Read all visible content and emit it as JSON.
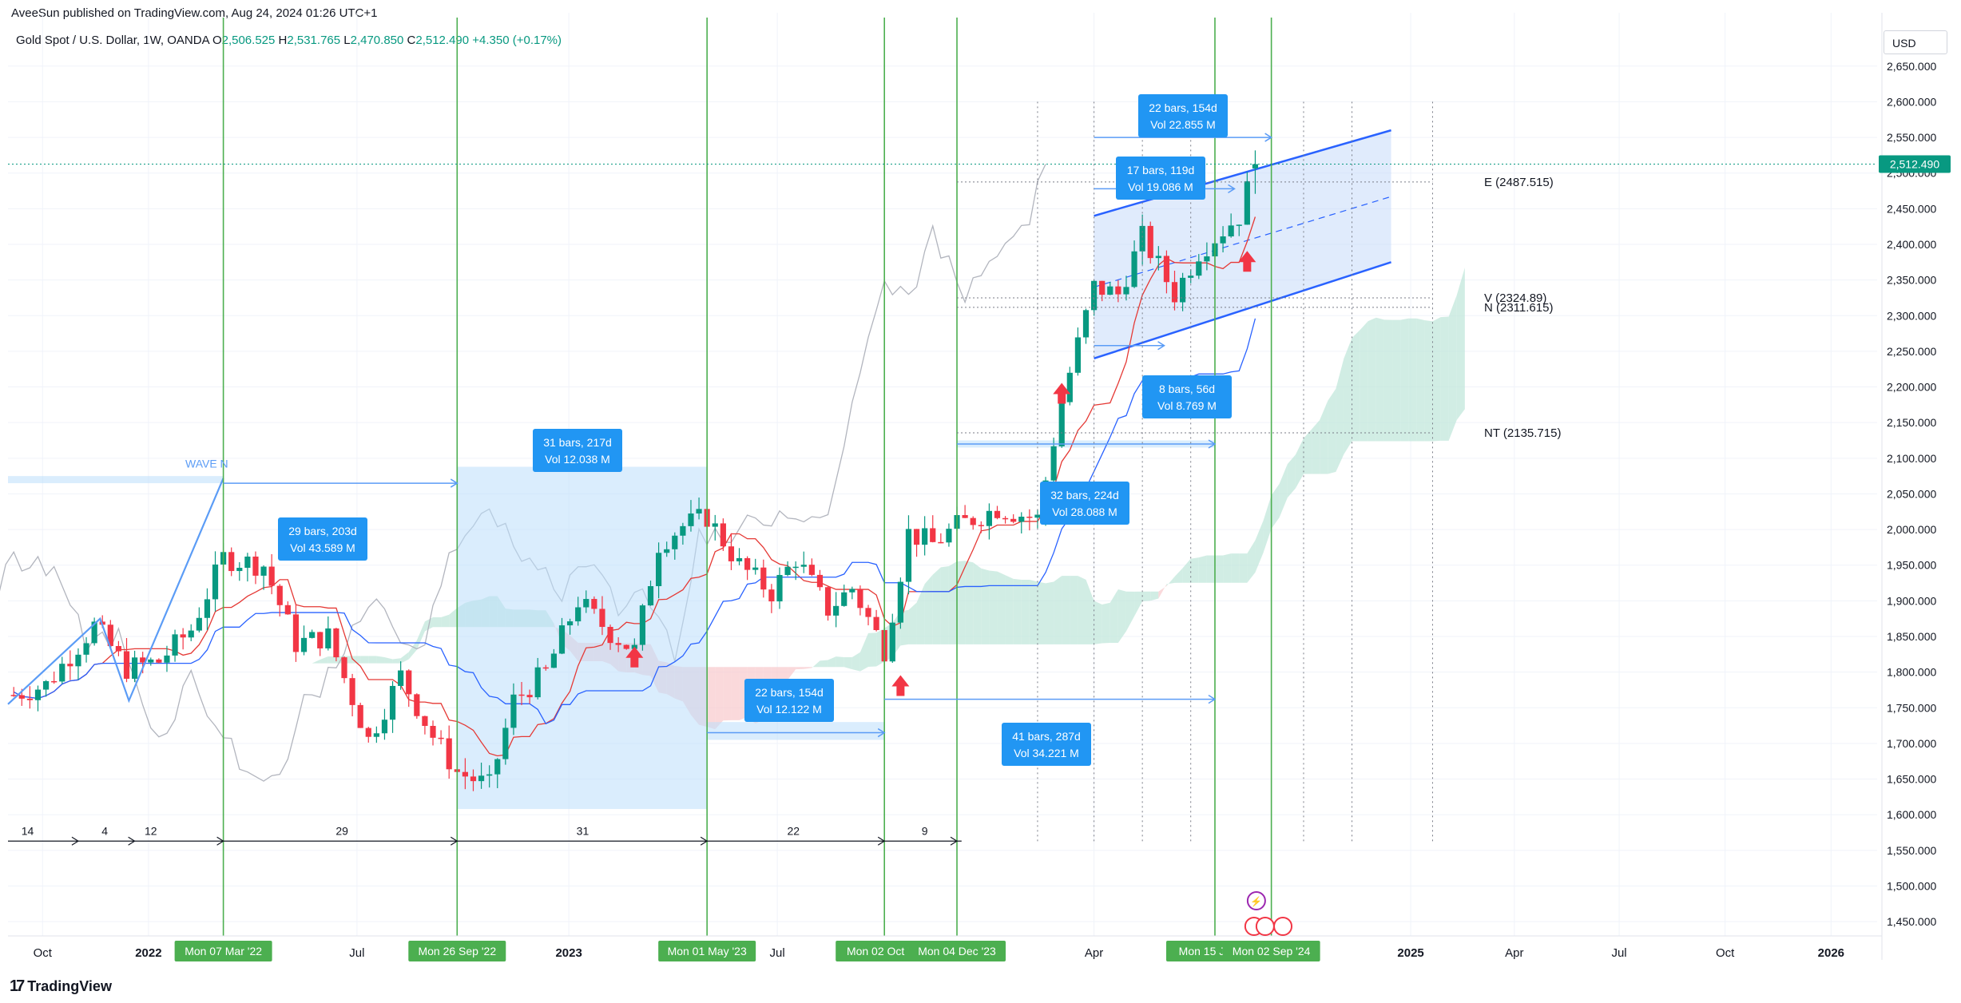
{
  "header": {
    "published": "AveeSun published on TradingView.com, Aug 24, 2024 01:26 UTC+1",
    "symbol": "Gold Spot / U.S. Dollar, 1W, OANDA",
    "ohlc": {
      "O": "2,506.525",
      "H": "2,531.765",
      "L": "2,470.850",
      "C": "2,512.490",
      "chg": "+4.350 (+0.17%)"
    }
  },
  "currency": "USD",
  "footer": {
    "logo": "TradingView"
  },
  "colors": {
    "up": "#089981",
    "down": "#f23645",
    "tenkan": "#e53935",
    "kijun": "#2962ff",
    "lagging": "#b2b5be",
    "cloud_bull": "#bde5d9",
    "cloud_bear": "#f8c9cc",
    "range": "#bbdefb",
    "vline": "#4caf50",
    "accent": "#2962ff"
  },
  "chart_data": {
    "type": "candlestick",
    "title": "Gold Spot / U.S. Dollar, 1W, OANDA",
    "ylim": [
      1430,
      2680
    ],
    "y_ticks": [
      1450,
      1500,
      1550,
      1600,
      1650,
      1700,
      1750,
      1800,
      1850,
      1900,
      1950,
      2000,
      2050,
      2100,
      2150,
      2200,
      2250,
      2300,
      2350,
      2400,
      2450,
      2500,
      2550,
      2600,
      2650
    ],
    "y_tick_labels": [
      "1,450.000",
      "1,500.000",
      "1,550.000",
      "1,600.000",
      "1,650.000",
      "1,700.000",
      "1,750.000",
      "1,800.000",
      "1,850.000",
      "1,900.000",
      "1,950.000",
      "2,000.000",
      "2,050.000",
      "2,100.000",
      "2,150.000",
      "2,200.000",
      "2,250.000",
      "2,300.000",
      "2,350.000",
      "2,400.000",
      "2,450.000",
      "2,500.000",
      "2,550.000",
      "2,600.000",
      "2,650.000"
    ],
    "last_price_label": "2,512.490",
    "x_labels": [
      {
        "label": "Oct",
        "date": "2021-10-01"
      },
      {
        "label": "2022",
        "date": "2022-01-01"
      },
      {
        "label": "Jul",
        "date": "2022-07-01"
      },
      {
        "label": "2023",
        "date": "2023-01-01"
      },
      {
        "label": "Jul",
        "date": "2023-07-01"
      },
      {
        "label": "Apr",
        "date": "2024-04-01"
      },
      {
        "label": "2025",
        "date": "2025-01-01"
      },
      {
        "label": "Apr",
        "date": "2025-04-01"
      },
      {
        "label": "Jul",
        "date": "2025-07-01"
      },
      {
        "label": "Oct",
        "date": "2025-10-01"
      },
      {
        "label": "2026",
        "date": "2026-01-01"
      }
    ],
    "vline_dates": [
      {
        "label": "Mon 07 Mar '22",
        "date": "2022-03-07"
      },
      {
        "label": "Mon 26 Sep '22",
        "date": "2022-09-26"
      },
      {
        "label": "Mon 01 May '23",
        "date": "2023-05-01"
      },
      {
        "label": "Mon 02 Oct '23",
        "date": "2023-10-02"
      },
      {
        "label": "Mon 04 Dec '23",
        "date": "2023-12-04"
      },
      {
        "label": "Mon 15 Jul '24",
        "date": "2024-07-15"
      },
      {
        "label": "Mon 02 Sep '24",
        "date": "2024-09-02"
      }
    ],
    "bar_counts": [
      {
        "label": "14",
        "date": "2021-09-18"
      },
      {
        "label": "4",
        "date": "2021-11-24"
      },
      {
        "label": "12",
        "date": "2022-01-03"
      },
      {
        "label": "29",
        "date": "2022-06-18"
      },
      {
        "label": "31",
        "date": "2023-01-13"
      },
      {
        "label": "22",
        "date": "2023-07-15"
      },
      {
        "label": "9",
        "date": "2023-11-06"
      }
    ],
    "levels": [
      {
        "label": "E (2487.515)",
        "value": 2487.515
      },
      {
        "label": "V (2324.89)",
        "value": 2324.89
      },
      {
        "label": "N (2311.615)",
        "value": 2311.615
      },
      {
        "label": "NT (2135.715)",
        "value": 2135.715
      }
    ],
    "wave_label": "WAVE N",
    "range_boxes": [
      {
        "line1": "29 bars, 203d",
        "line2": "Vol 43.589 M"
      },
      {
        "line1": "31 bars, 217d",
        "line2": "Vol 12.038 M"
      },
      {
        "line1": "22 bars, 154d",
        "line2": "Vol 12.122 M"
      },
      {
        "line1": "32 bars, 224d",
        "line2": "Vol 28.088 M"
      },
      {
        "line1": "41 bars, 287d",
        "line2": "Vol 34.221 M"
      },
      {
        "line1": "8 bars, 56d",
        "line2": "Vol 8.769 M"
      },
      {
        "line1": "17 bars, 119d",
        "line2": "Vol 19.086 M"
      },
      {
        "line1": "22 bars, 154d",
        "line2": "Vol 22.855 M"
      }
    ],
    "series": [
      {
        "name": "Gold Spot / U.S. Dollar",
        "close_path": [
          [
            "2021-09-06",
            1768
          ],
          [
            "2021-10-04",
            1782
          ],
          [
            "2021-11-15",
            1865
          ],
          [
            "2021-12-13",
            1805
          ],
          [
            "2022-01-10",
            1815
          ],
          [
            "2022-02-07",
            1860
          ],
          [
            "2022-03-07",
            1960
          ],
          [
            "2022-04-11",
            1950
          ],
          [
            "2022-05-09",
            1840
          ],
          [
            "2022-06-06",
            1850
          ],
          [
            "2022-07-11",
            1705
          ],
          [
            "2022-08-08",
            1795
          ],
          [
            "2022-09-05",
            1710
          ],
          [
            "2022-09-26",
            1660
          ],
          [
            "2022-10-24",
            1640
          ],
          [
            "2022-11-14",
            1760
          ],
          [
            "2022-12-12",
            1800
          ],
          [
            "2023-01-09",
            1900
          ],
          [
            "2023-02-06",
            1855
          ],
          [
            "2023-02-27",
            1830
          ],
          [
            "2023-03-20",
            1980
          ],
          [
            "2023-04-10",
            2005
          ],
          [
            "2023-05-01",
            2018
          ],
          [
            "2023-05-29",
            1950
          ],
          [
            "2023-06-26",
            1912
          ],
          [
            "2023-07-17",
            1960
          ],
          [
            "2023-08-14",
            1888
          ],
          [
            "2023-09-04",
            1918
          ],
          [
            "2023-10-02",
            1832
          ],
          [
            "2023-10-23",
            1995
          ],
          [
            "2023-11-13",
            1980
          ],
          [
            "2023-12-04",
            2005
          ],
          [
            "2024-01-08",
            2030
          ],
          [
            "2024-02-12",
            2015
          ],
          [
            "2024-03-04",
            2180
          ],
          [
            "2024-04-01",
            2340
          ],
          [
            "2024-04-22",
            2330
          ],
          [
            "2024-05-13",
            2410
          ],
          [
            "2024-06-10",
            2330
          ],
          [
            "2024-07-01",
            2390
          ],
          [
            "2024-07-15",
            2410
          ],
          [
            "2024-08-05",
            2440
          ],
          [
            "2024-08-19",
            2512
          ]
        ]
      }
    ]
  }
}
